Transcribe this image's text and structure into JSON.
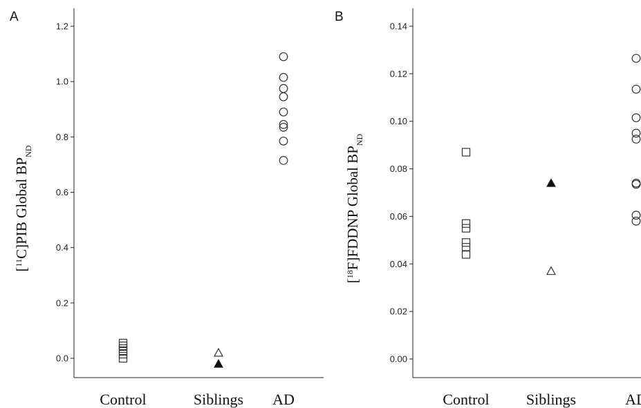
{
  "chart_data": [
    {
      "type": "scatter",
      "panel": "A",
      "ylabel_parts": [
        "[",
        "11",
        "C]PIB Global BP",
        "ND"
      ],
      "categories": [
        "Control",
        "Siblings",
        "AD"
      ],
      "ylim": [
        -0.07,
        1.22
      ],
      "yticks": [
        "0.0",
        "0.2",
        "0.4",
        "0.6",
        "0.8",
        "1.0",
        "1.2"
      ],
      "ytick_values": [
        0.0,
        0.2,
        0.4,
        0.6,
        0.8,
        1.0,
        1.2
      ],
      "grid": false,
      "series": [
        {
          "category": "Control",
          "marker": "open-square",
          "values": [
            0.0,
            0.015,
            0.025,
            0.035,
            0.045,
            0.055
          ]
        },
        {
          "category": "Siblings",
          "marker": "open-triangle",
          "values": [
            0.02
          ]
        },
        {
          "category": "Siblings",
          "marker": "filled-triangle",
          "values": [
            -0.02
          ]
        },
        {
          "category": "AD",
          "marker": "open-circle",
          "values": [
            1.09,
            1.015,
            0.975,
            0.945,
            0.89,
            0.845,
            0.835,
            0.785,
            0.715
          ]
        }
      ]
    },
    {
      "type": "scatter",
      "panel": "B",
      "ylabel_parts": [
        "[",
        "18",
        "F]FDDNP Global BP",
        "ND"
      ],
      "categories": [
        "Control",
        "Siblings",
        "AD"
      ],
      "ylim": [
        -0.008,
        0.148
      ],
      "yticks": [
        "0.00",
        "0.02",
        "0.04",
        "0.06",
        "0.08",
        "0.10",
        "0.12",
        "0.14"
      ],
      "ytick_values": [
        0.0,
        0.02,
        0.04,
        0.06,
        0.08,
        0.1,
        0.12,
        0.14
      ],
      "grid": false,
      "series": [
        {
          "category": "Control",
          "marker": "open-square",
          "values": [
            0.087,
            0.057,
            0.055,
            0.049,
            0.047,
            0.044
          ]
        },
        {
          "category": "Siblings",
          "marker": "filled-triangle",
          "values": [
            0.074
          ]
        },
        {
          "category": "Siblings",
          "marker": "open-triangle",
          "values": [
            0.037
          ]
        },
        {
          "category": "AD",
          "marker": "open-circle",
          "values": [
            0.1265,
            0.1135,
            0.1015,
            0.095,
            0.0925,
            0.074,
            0.0735,
            0.0605,
            0.058
          ]
        }
      ]
    }
  ]
}
